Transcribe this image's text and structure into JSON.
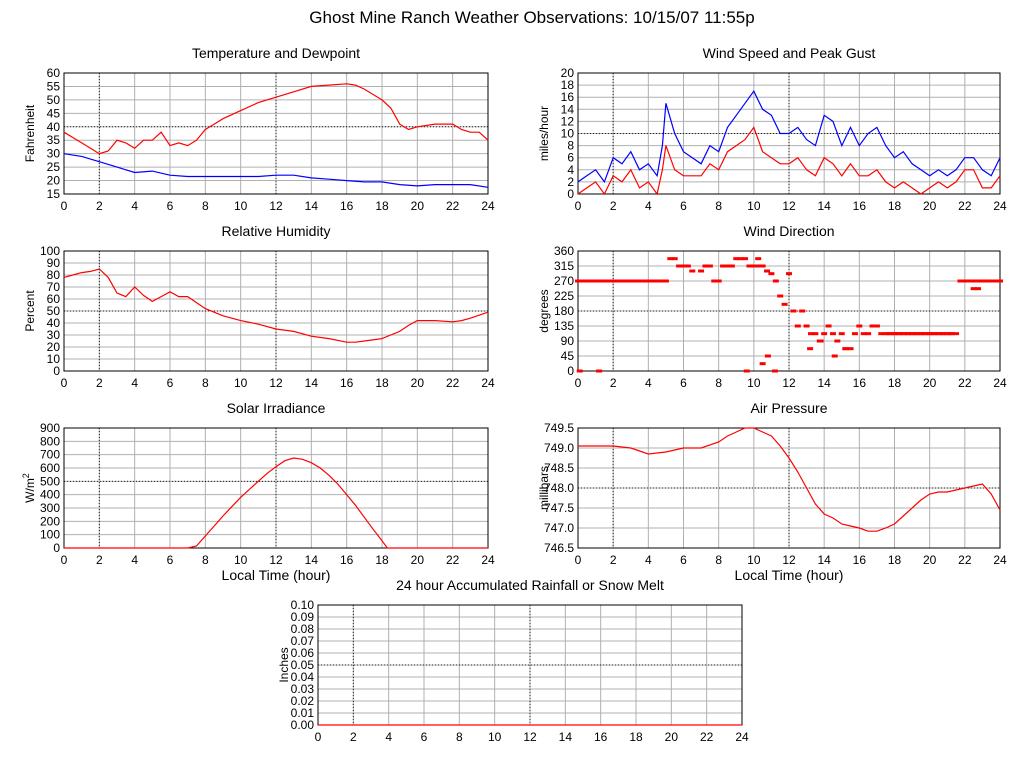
{
  "page": {
    "title": "Ghost Mine Ranch Weather Observations: 10/15/07 11:55p"
  },
  "chart_data": [
    {
      "id": "temp",
      "type": "line",
      "title": "Temperature and Dewpoint",
      "xlabel": "",
      "ylabel": "Fahrenheit",
      "xlim": [
        0,
        24
      ],
      "ylim": [
        15,
        60
      ],
      "yticks": [
        15,
        20,
        25,
        30,
        35,
        40,
        45,
        50,
        55,
        60
      ],
      "xticks": [
        0,
        2,
        4,
        6,
        8,
        10,
        12,
        14,
        16,
        18,
        20,
        22,
        24
      ],
      "series": [
        {
          "color": "#ff0000",
          "x": [
            0,
            0.5,
            1,
            1.5,
            2,
            2.5,
            3,
            3.5,
            4,
            4.5,
            5,
            5.5,
            6,
            6.5,
            7,
            7.5,
            8,
            8.5,
            9,
            10,
            11,
            12,
            13,
            14,
            15,
            16,
            16.5,
            17,
            18,
            18.5,
            19,
            19.5,
            20,
            21,
            22,
            22.5,
            23,
            23.5,
            24
          ],
          "y": [
            38,
            36,
            34,
            32,
            30,
            31,
            35,
            34,
            32,
            35,
            35,
            38,
            33,
            34,
            33,
            35,
            39,
            41,
            43,
            46,
            49,
            51,
            53,
            55,
            55.5,
            56,
            55.5,
            54,
            50,
            47,
            41,
            39,
            40,
            41,
            41,
            39,
            38,
            38,
            35
          ]
        },
        {
          "color": "#0000ff",
          "x": [
            0,
            1,
            2,
            3,
            4,
            5,
            6,
            7,
            8,
            9,
            10,
            11,
            12,
            13,
            14,
            15,
            16,
            17,
            18,
            19,
            20,
            21,
            22,
            23,
            24
          ],
          "y": [
            30,
            29,
            27,
            25,
            23,
            23.5,
            22,
            21.5,
            21.5,
            21.5,
            21.5,
            21.5,
            22,
            22,
            21,
            20.5,
            20,
            19.5,
            19.5,
            18.5,
            18,
            18.5,
            18.5,
            18.5,
            17.5
          ]
        }
      ]
    },
    {
      "id": "wind",
      "type": "line",
      "title": "Wind Speed and Peak Gust",
      "xlabel": "",
      "ylabel": "miles/hour",
      "xlim": [
        0,
        24
      ],
      "ylim": [
        0,
        20
      ],
      "yticks": [
        0,
        2,
        4,
        6,
        8,
        10,
        12,
        14,
        16,
        18,
        20
      ],
      "xticks": [
        0,
        2,
        4,
        6,
        8,
        10,
        12,
        14,
        16,
        18,
        20,
        22,
        24
      ],
      "series": [
        {
          "color": "#0000ff",
          "x": [
            0,
            0.5,
            1,
            1.5,
            2,
            2.5,
            3,
            3.5,
            4,
            4.5,
            4.8,
            5,
            5.5,
            6,
            6.5,
            7,
            7.5,
            8,
            8.5,
            9,
            9.5,
            10,
            10.5,
            11,
            11.5,
            12,
            12.5,
            13,
            13.5,
            14,
            14.5,
            15,
            15.5,
            16,
            16.5,
            17,
            17.5,
            18,
            18.5,
            19,
            19.5,
            20,
            20.5,
            21,
            21.5,
            22,
            22.5,
            23,
            23.5,
            24
          ],
          "y": [
            2,
            3,
            4,
            2,
            6,
            5,
            7,
            4,
            5,
            3,
            8,
            15,
            10,
            7,
            6,
            5,
            8,
            7,
            11,
            13,
            15,
            17,
            14,
            13,
            10,
            10,
            11,
            9,
            8,
            13,
            12,
            8,
            11,
            8,
            10,
            11,
            8,
            6,
            7,
            5,
            4,
            3,
            4,
            3,
            4,
            6,
            6,
            4,
            3,
            6
          ]
        },
        {
          "color": "#ff0000",
          "x": [
            0,
            0.5,
            1,
            1.5,
            2,
            2.5,
            3,
            3.5,
            4,
            4.5,
            4.8,
            5,
            5.5,
            6,
            6.5,
            7,
            7.5,
            8,
            8.5,
            9,
            9.5,
            10,
            10.5,
            11,
            11.5,
            12,
            12.5,
            13,
            13.5,
            14,
            14.5,
            15,
            15.5,
            16,
            16.5,
            17,
            17.5,
            18,
            18.5,
            19,
            19.5,
            20,
            20.5,
            21,
            21.5,
            22,
            22.5,
            23,
            23.5,
            24
          ],
          "y": [
            0,
            1,
            2,
            0,
            3,
            2,
            4,
            1,
            2,
            0,
            4,
            8,
            4,
            3,
            3,
            3,
            5,
            4,
            7,
            8,
            9,
            11,
            7,
            6,
            5,
            5,
            6,
            4,
            3,
            6,
            5,
            3,
            5,
            3,
            3,
            4,
            2,
            1,
            2,
            1,
            0,
            1,
            2,
            1,
            2,
            4,
            4,
            1,
            1,
            3
          ]
        }
      ]
    },
    {
      "id": "rh",
      "type": "line",
      "title": "Relative Humidity",
      "xlabel": "",
      "ylabel": "Percent",
      "xlim": [
        0,
        24
      ],
      "ylim": [
        0,
        100
      ],
      "yticks": [
        0,
        10,
        20,
        30,
        40,
        50,
        60,
        70,
        80,
        90,
        100
      ],
      "xticks": [
        0,
        2,
        4,
        6,
        8,
        10,
        12,
        14,
        16,
        18,
        20,
        22,
        24
      ],
      "series": [
        {
          "color": "#ff0000",
          "x": [
            0,
            0.5,
            1,
            1.5,
            2,
            2.5,
            3,
            3.5,
            4,
            4.5,
            5,
            5.5,
            6,
            6.5,
            7,
            7.5,
            8,
            9,
            10,
            11,
            12,
            13,
            14,
            15,
            16,
            16.5,
            17,
            18,
            19,
            19.5,
            20,
            21,
            22,
            22.5,
            23,
            24
          ],
          "y": [
            78,
            80,
            82,
            83,
            85,
            78,
            65,
            62,
            70,
            63,
            58,
            62,
            66,
            62,
            62,
            57,
            52,
            46,
            42,
            39,
            35,
            33,
            29,
            27,
            24,
            24,
            25,
            27,
            33,
            38,
            42,
            42,
            41,
            42,
            44,
            49
          ]
        }
      ]
    },
    {
      "id": "winddir",
      "type": "scatter",
      "title": "Wind Direction",
      "xlabel": "",
      "ylabel": "degrees",
      "xlim": [
        0,
        24
      ],
      "ylim": [
        0,
        360
      ],
      "yticks": [
        0,
        45,
        90,
        135,
        180,
        225,
        270,
        315,
        360
      ],
      "xticks": [
        0,
        2,
        4,
        6,
        8,
        10,
        12,
        14,
        16,
        18,
        20,
        22,
        24
      ],
      "series": [
        {
          "color": "#ff0000",
          "x": [
            0,
            0.25,
            0.5,
            0.75,
            1,
            1.25,
            1.5,
            1.75,
            2,
            2.25,
            2.5,
            2.75,
            3,
            3.25,
            3.5,
            3.75,
            4,
            4.25,
            4.5,
            4.75,
            5,
            5.25,
            5.5,
            5.75,
            6,
            6.25,
            6.5,
            7,
            7.25,
            7.5,
            7.75,
            8,
            8.25,
            8.5,
            8.75,
            9,
            9.25,
            9.5,
            9.75,
            10,
            10.25,
            10.5,
            10.75,
            11,
            11.25,
            11.5,
            11.75,
            12,
            12.25,
            12.5,
            12.75,
            13,
            13.25,
            13.5,
            13.75,
            14,
            14.25,
            14.5,
            14.75,
            15,
            15.25,
            15.5,
            15.75,
            16,
            16.25,
            16.5,
            16.75,
            17,
            17.25,
            17.5,
            17.75,
            18,
            18.25,
            18.5,
            18.75,
            19,
            19.25,
            19.5,
            19.75,
            20,
            20.25,
            20.5,
            20.75,
            21,
            21.25,
            21.5,
            21.75,
            22,
            22.25,
            22.5,
            22.75,
            23,
            23.25,
            23.5,
            23.75,
            24,
            0.1,
            1.2,
            10.5,
            10.8,
            11.2,
            13.2,
            13.8,
            14.6,
            15.2,
            9.6,
            10.2
          ],
          "y": [
            270,
            270,
            270,
            270,
            270,
            270,
            270,
            270,
            270,
            270,
            270,
            270,
            270,
            270,
            270,
            270,
            270,
            270,
            270,
            270,
            270,
            337,
            337,
            315,
            315,
            315,
            300,
            300,
            315,
            315,
            270,
            270,
            315,
            315,
            315,
            337,
            337,
            337,
            315,
            315,
            337,
            315,
            300,
            292,
            270,
            225,
            200,
            292,
            180,
            135,
            180,
            135,
            112,
            112,
            90,
            112,
            135,
            112,
            90,
            112,
            67,
            67,
            112,
            135,
            112,
            112,
            135,
            135,
            112,
            112,
            112,
            112,
            112,
            112,
            112,
            112,
            112,
            112,
            112,
            112,
            112,
            112,
            112,
            112,
            112,
            112,
            270,
            270,
            270,
            247,
            247,
            270,
            270,
            270,
            270,
            270,
            0,
            0,
            22,
            45,
            0,
            67,
            90,
            45,
            67,
            0,
            315
          ]
        }
      ]
    },
    {
      "id": "solar",
      "type": "line",
      "title": "Solar Irradiance",
      "xlabel": "Local Time (hour)",
      "ylabel": "W/m",
      "ylabel_sup": "2",
      "xlim": [
        0,
        24
      ],
      "ylim": [
        0,
        900
      ],
      "yticks": [
        0,
        100,
        200,
        300,
        400,
        500,
        600,
        700,
        800,
        900
      ],
      "xticks": [
        0,
        2,
        4,
        6,
        8,
        10,
        12,
        14,
        16,
        18,
        20,
        22,
        24
      ],
      "series": [
        {
          "color": "#ff0000",
          "x": [
            0,
            7,
            7.5,
            8,
            8.5,
            9,
            9.5,
            10,
            10.5,
            11,
            11.5,
            12,
            12.5,
            13,
            13.5,
            14,
            14.5,
            15,
            15.5,
            16,
            16.5,
            17,
            17.5,
            18,
            18.3,
            24
          ],
          "y": [
            0,
            0,
            15,
            90,
            165,
            240,
            310,
            380,
            440,
            500,
            560,
            610,
            655,
            675,
            665,
            640,
            600,
            545,
            480,
            400,
            320,
            230,
            140,
            55,
            0,
            0
          ]
        }
      ]
    },
    {
      "id": "pressure",
      "type": "line",
      "title": "Air Pressure",
      "xlabel": "Local Time (hour)",
      "ylabel": "millibars",
      "xlim": [
        0,
        24
      ],
      "ylim": [
        746.5,
        749.5
      ],
      "yticks": [
        746.5,
        747.0,
        747.5,
        748.0,
        748.5,
        749.0,
        749.5
      ],
      "ytick_labels": [
        "746.5",
        "747.0",
        "747.5",
        "748.0",
        "748.5",
        "749.0",
        "749.5"
      ],
      "xticks": [
        0,
        2,
        4,
        6,
        8,
        10,
        12,
        14,
        16,
        18,
        20,
        22,
        24
      ],
      "series": [
        {
          "color": "#ff0000",
          "x": [
            0,
            1,
            2,
            3,
            4,
            5,
            6,
            7,
            8,
            8.5,
            9,
            9.5,
            10,
            10.5,
            11,
            11.5,
            12,
            12.5,
            13,
            13.5,
            14,
            14.5,
            15,
            15.5,
            16,
            16.5,
            17,
            17.5,
            18,
            18.5,
            19,
            19.5,
            20,
            20.5,
            21,
            21.5,
            22,
            22.5,
            23,
            23.5,
            24
          ],
          "y": [
            749.05,
            749.05,
            749.05,
            749.0,
            748.85,
            748.9,
            749.0,
            749.0,
            749.15,
            749.3,
            749.4,
            749.5,
            749.5,
            749.4,
            749.3,
            749.05,
            748.75,
            748.4,
            748.0,
            747.6,
            747.35,
            747.25,
            747.1,
            747.05,
            747.0,
            746.92,
            746.92,
            747.0,
            747.1,
            747.3,
            747.5,
            747.7,
            747.85,
            747.9,
            747.9,
            747.95,
            748.0,
            748.05,
            748.1,
            747.85,
            747.45
          ]
        }
      ]
    },
    {
      "id": "rain",
      "type": "line",
      "title": "24 hour Accumulated Rainfall or Snow Melt",
      "xlabel": "",
      "ylabel": "Inches",
      "xlim": [
        0,
        24
      ],
      "ylim": [
        0,
        0.1
      ],
      "yticks": [
        0,
        0.01,
        0.02,
        0.03,
        0.04,
        0.05,
        0.06,
        0.07,
        0.08,
        0.09,
        0.1
      ],
      "ytick_labels": [
        "0.00",
        "0.01",
        "0.02",
        "0.03",
        "0.04",
        "0.05",
        "0.06",
        "0.07",
        "0.08",
        "0.09",
        "0.10"
      ],
      "xticks": [
        0,
        2,
        4,
        6,
        8,
        10,
        12,
        14,
        16,
        18,
        20,
        22,
        24
      ],
      "series": [
        {
          "color": "#ff0000",
          "x": [
            0,
            24
          ],
          "y": [
            0,
            0
          ]
        }
      ]
    }
  ]
}
